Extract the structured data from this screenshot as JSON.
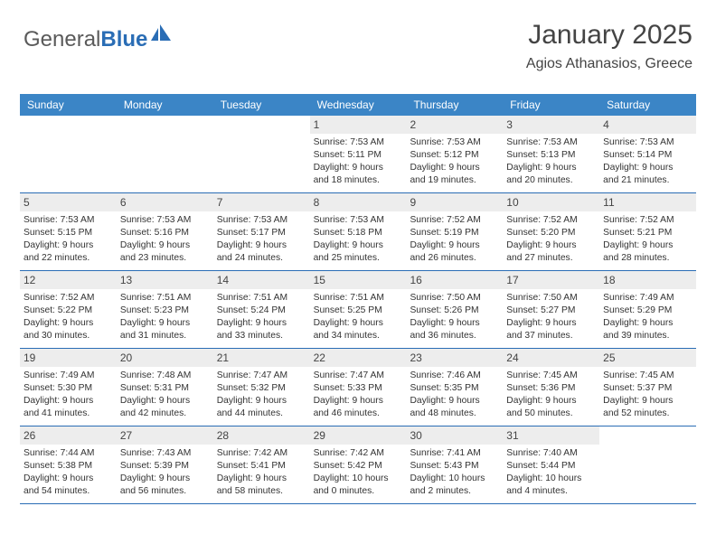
{
  "logo": {
    "part1": "General",
    "part2": "Blue"
  },
  "header": {
    "title": "January 2025",
    "location": "Agios Athanasios, Greece"
  },
  "colors": {
    "header_bar": "#3b85c6",
    "week_divider": "#2a6db5",
    "daynum_bg": "#ededed",
    "text": "#333333",
    "title_text": "#444444",
    "logo_gray": "#5a5a5a",
    "logo_blue": "#2a6db5",
    "page_bg": "#ffffff"
  },
  "typography": {
    "title_fontsize": 30,
    "location_fontsize": 16,
    "dayheader_fontsize": 12,
    "daynum_fontsize": 12,
    "body_fontsize": 10.3,
    "logo_fontsize": 24
  },
  "calendar": {
    "type": "table",
    "day_headers": [
      "Sunday",
      "Monday",
      "Tuesday",
      "Wednesday",
      "Thursday",
      "Friday",
      "Saturday"
    ],
    "weeks": [
      [
        {
          "blank": true
        },
        {
          "blank": true
        },
        {
          "blank": true
        },
        {
          "day": "1",
          "sunrise": "Sunrise: 7:53 AM",
          "sunset": "Sunset: 5:11 PM",
          "daylight1": "Daylight: 9 hours",
          "daylight2": "and 18 minutes."
        },
        {
          "day": "2",
          "sunrise": "Sunrise: 7:53 AM",
          "sunset": "Sunset: 5:12 PM",
          "daylight1": "Daylight: 9 hours",
          "daylight2": "and 19 minutes."
        },
        {
          "day": "3",
          "sunrise": "Sunrise: 7:53 AM",
          "sunset": "Sunset: 5:13 PM",
          "daylight1": "Daylight: 9 hours",
          "daylight2": "and 20 minutes."
        },
        {
          "day": "4",
          "sunrise": "Sunrise: 7:53 AM",
          "sunset": "Sunset: 5:14 PM",
          "daylight1": "Daylight: 9 hours",
          "daylight2": "and 21 minutes."
        }
      ],
      [
        {
          "day": "5",
          "sunrise": "Sunrise: 7:53 AM",
          "sunset": "Sunset: 5:15 PM",
          "daylight1": "Daylight: 9 hours",
          "daylight2": "and 22 minutes."
        },
        {
          "day": "6",
          "sunrise": "Sunrise: 7:53 AM",
          "sunset": "Sunset: 5:16 PM",
          "daylight1": "Daylight: 9 hours",
          "daylight2": "and 23 minutes."
        },
        {
          "day": "7",
          "sunrise": "Sunrise: 7:53 AM",
          "sunset": "Sunset: 5:17 PM",
          "daylight1": "Daylight: 9 hours",
          "daylight2": "and 24 minutes."
        },
        {
          "day": "8",
          "sunrise": "Sunrise: 7:53 AM",
          "sunset": "Sunset: 5:18 PM",
          "daylight1": "Daylight: 9 hours",
          "daylight2": "and 25 minutes."
        },
        {
          "day": "9",
          "sunrise": "Sunrise: 7:52 AM",
          "sunset": "Sunset: 5:19 PM",
          "daylight1": "Daylight: 9 hours",
          "daylight2": "and 26 minutes."
        },
        {
          "day": "10",
          "sunrise": "Sunrise: 7:52 AM",
          "sunset": "Sunset: 5:20 PM",
          "daylight1": "Daylight: 9 hours",
          "daylight2": "and 27 minutes."
        },
        {
          "day": "11",
          "sunrise": "Sunrise: 7:52 AM",
          "sunset": "Sunset: 5:21 PM",
          "daylight1": "Daylight: 9 hours",
          "daylight2": "and 28 minutes."
        }
      ],
      [
        {
          "day": "12",
          "sunrise": "Sunrise: 7:52 AM",
          "sunset": "Sunset: 5:22 PM",
          "daylight1": "Daylight: 9 hours",
          "daylight2": "and 30 minutes."
        },
        {
          "day": "13",
          "sunrise": "Sunrise: 7:51 AM",
          "sunset": "Sunset: 5:23 PM",
          "daylight1": "Daylight: 9 hours",
          "daylight2": "and 31 minutes."
        },
        {
          "day": "14",
          "sunrise": "Sunrise: 7:51 AM",
          "sunset": "Sunset: 5:24 PM",
          "daylight1": "Daylight: 9 hours",
          "daylight2": "and 33 minutes."
        },
        {
          "day": "15",
          "sunrise": "Sunrise: 7:51 AM",
          "sunset": "Sunset: 5:25 PM",
          "daylight1": "Daylight: 9 hours",
          "daylight2": "and 34 minutes."
        },
        {
          "day": "16",
          "sunrise": "Sunrise: 7:50 AM",
          "sunset": "Sunset: 5:26 PM",
          "daylight1": "Daylight: 9 hours",
          "daylight2": "and 36 minutes."
        },
        {
          "day": "17",
          "sunrise": "Sunrise: 7:50 AM",
          "sunset": "Sunset: 5:27 PM",
          "daylight1": "Daylight: 9 hours",
          "daylight2": "and 37 minutes."
        },
        {
          "day": "18",
          "sunrise": "Sunrise: 7:49 AM",
          "sunset": "Sunset: 5:29 PM",
          "daylight1": "Daylight: 9 hours",
          "daylight2": "and 39 minutes."
        }
      ],
      [
        {
          "day": "19",
          "sunrise": "Sunrise: 7:49 AM",
          "sunset": "Sunset: 5:30 PM",
          "daylight1": "Daylight: 9 hours",
          "daylight2": "and 41 minutes."
        },
        {
          "day": "20",
          "sunrise": "Sunrise: 7:48 AM",
          "sunset": "Sunset: 5:31 PM",
          "daylight1": "Daylight: 9 hours",
          "daylight2": "and 42 minutes."
        },
        {
          "day": "21",
          "sunrise": "Sunrise: 7:47 AM",
          "sunset": "Sunset: 5:32 PM",
          "daylight1": "Daylight: 9 hours",
          "daylight2": "and 44 minutes."
        },
        {
          "day": "22",
          "sunrise": "Sunrise: 7:47 AM",
          "sunset": "Sunset: 5:33 PM",
          "daylight1": "Daylight: 9 hours",
          "daylight2": "and 46 minutes."
        },
        {
          "day": "23",
          "sunrise": "Sunrise: 7:46 AM",
          "sunset": "Sunset: 5:35 PM",
          "daylight1": "Daylight: 9 hours",
          "daylight2": "and 48 minutes."
        },
        {
          "day": "24",
          "sunrise": "Sunrise: 7:45 AM",
          "sunset": "Sunset: 5:36 PM",
          "daylight1": "Daylight: 9 hours",
          "daylight2": "and 50 minutes."
        },
        {
          "day": "25",
          "sunrise": "Sunrise: 7:45 AM",
          "sunset": "Sunset: 5:37 PM",
          "daylight1": "Daylight: 9 hours",
          "daylight2": "and 52 minutes."
        }
      ],
      [
        {
          "day": "26",
          "sunrise": "Sunrise: 7:44 AM",
          "sunset": "Sunset: 5:38 PM",
          "daylight1": "Daylight: 9 hours",
          "daylight2": "and 54 minutes."
        },
        {
          "day": "27",
          "sunrise": "Sunrise: 7:43 AM",
          "sunset": "Sunset: 5:39 PM",
          "daylight1": "Daylight: 9 hours",
          "daylight2": "and 56 minutes."
        },
        {
          "day": "28",
          "sunrise": "Sunrise: 7:42 AM",
          "sunset": "Sunset: 5:41 PM",
          "daylight1": "Daylight: 9 hours",
          "daylight2": "and 58 minutes."
        },
        {
          "day": "29",
          "sunrise": "Sunrise: 7:42 AM",
          "sunset": "Sunset: 5:42 PM",
          "daylight1": "Daylight: 10 hours",
          "daylight2": "and 0 minutes."
        },
        {
          "day": "30",
          "sunrise": "Sunrise: 7:41 AM",
          "sunset": "Sunset: 5:43 PM",
          "daylight1": "Daylight: 10 hours",
          "daylight2": "and 2 minutes."
        },
        {
          "day": "31",
          "sunrise": "Sunrise: 7:40 AM",
          "sunset": "Sunset: 5:44 PM",
          "daylight1": "Daylight: 10 hours",
          "daylight2": "and 4 minutes."
        },
        {
          "blank": true
        }
      ]
    ]
  }
}
